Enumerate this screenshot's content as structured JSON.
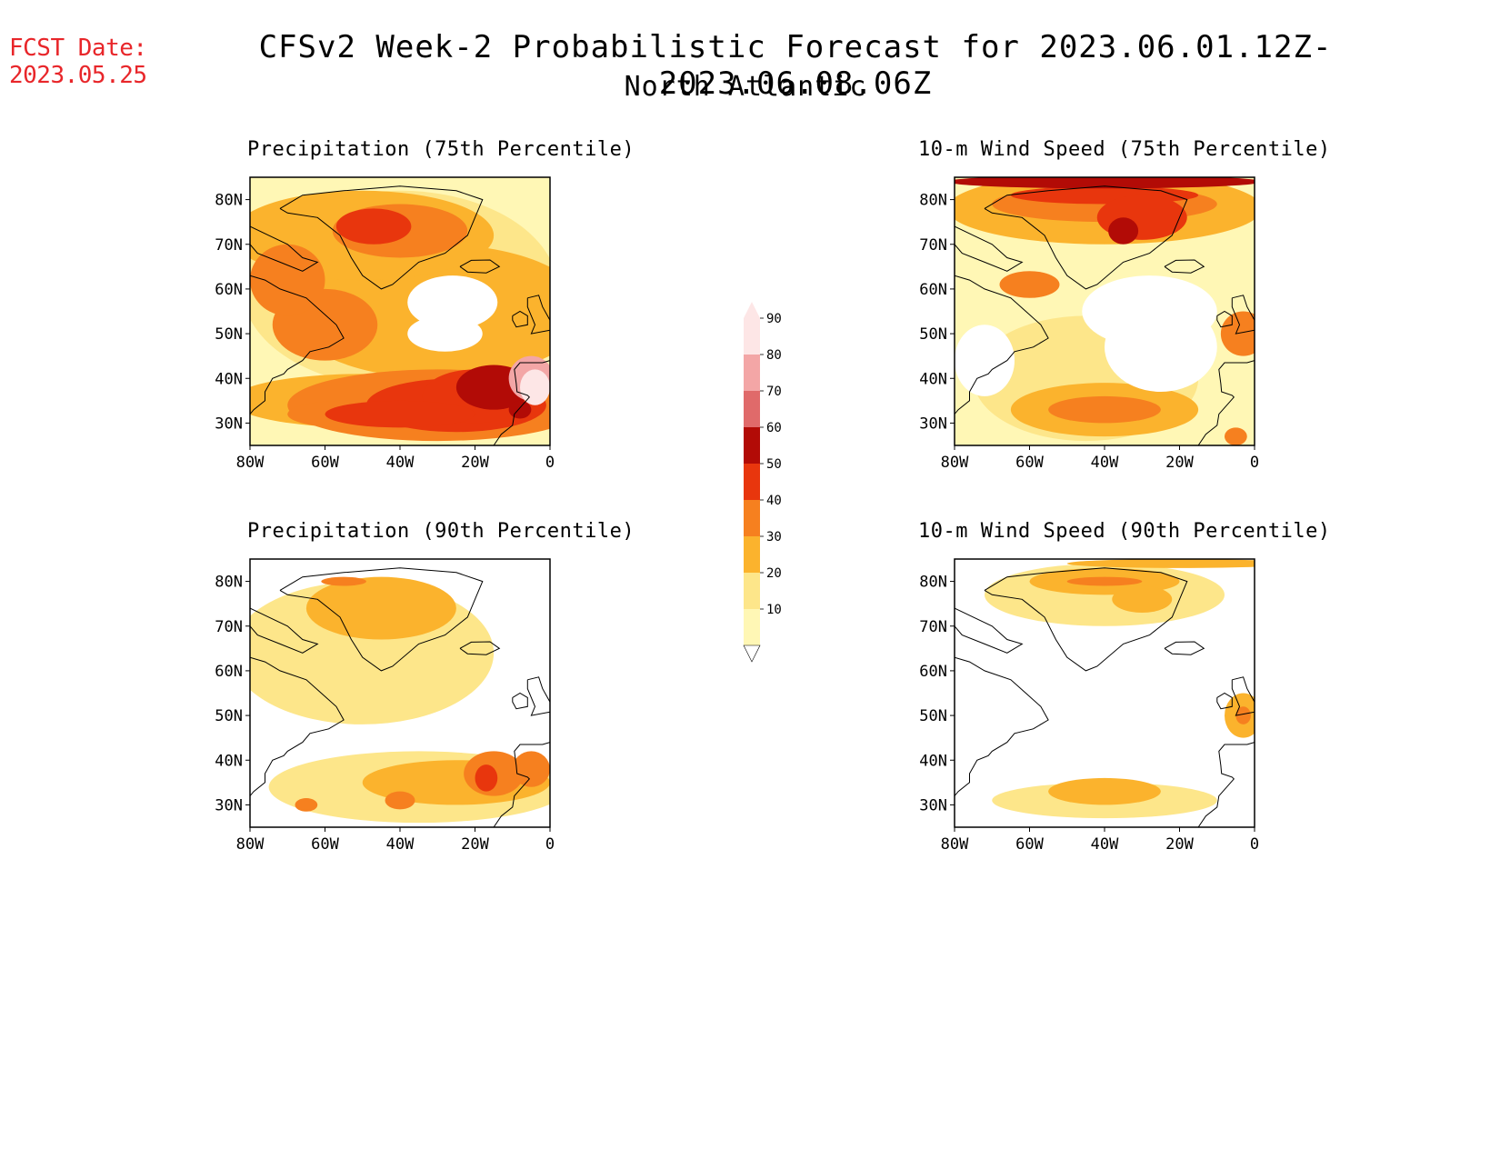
{
  "forecast_date": {
    "label": "FCST Date:",
    "value": "2023.05.25"
  },
  "title": "CFSv2 Week-2 Probabilistic Forecast for 2023.06.01.12Z-2023.06.08.06Z",
  "subtitle": "North Atlantic",
  "panels": [
    {
      "id": "precip-75",
      "title": "Precipitation (75th Percentile)"
    },
    {
      "id": "wind-75",
      "title": "10-m Wind Speed (75th Percentile)"
    },
    {
      "id": "precip-90",
      "title": "Precipitation (90th Percentile)"
    },
    {
      "id": "wind-90",
      "title": "10-m Wind Speed (90th Percentile)"
    }
  ],
  "lat_labels": [
    "80N",
    "70N",
    "60N",
    "50N",
    "40N",
    "30N"
  ],
  "lon_labels": [
    "80W",
    "60W",
    "40W",
    "20W",
    "0"
  ],
  "colorbar": {
    "levels": [
      "10",
      "20",
      "30",
      "40",
      "50",
      "60",
      "70",
      "80",
      "90"
    ],
    "colors": [
      "#fff7b5",
      "#fde68a",
      "#fbb32d",
      "#f6801f",
      "#e8360d",
      "#b20b06",
      "#e06a6a",
      "#f3a6a6",
      "#fde6e6"
    ]
  },
  "map_extent": {
    "lon": [
      -80,
      0
    ],
    "lat": [
      25,
      85
    ]
  }
}
